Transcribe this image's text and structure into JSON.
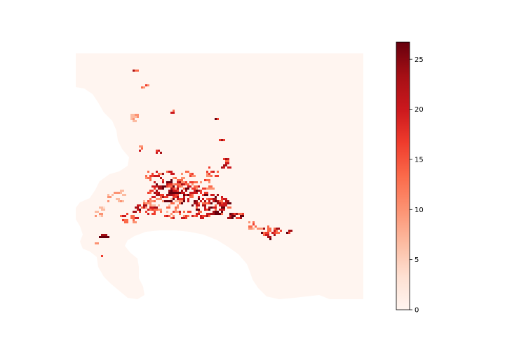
{
  "map": {
    "colormap": "Reds",
    "land_color": "#fff5f0",
    "sea_color": "#ffffff"
  },
  "colorbar": {
    "min": 0,
    "max": 26.7,
    "ticks": [
      0,
      5,
      10,
      15,
      20,
      25
    ],
    "tick_labels": [
      "0",
      "5",
      "10",
      "15",
      "20",
      "25"
    ],
    "colors": [
      "#fff5f0",
      "#fee0d2",
      "#fcbba1",
      "#fc9272",
      "#fb6a4a",
      "#ef3b2c",
      "#cb181d",
      "#a50f15",
      "#67000d"
    ]
  }
}
